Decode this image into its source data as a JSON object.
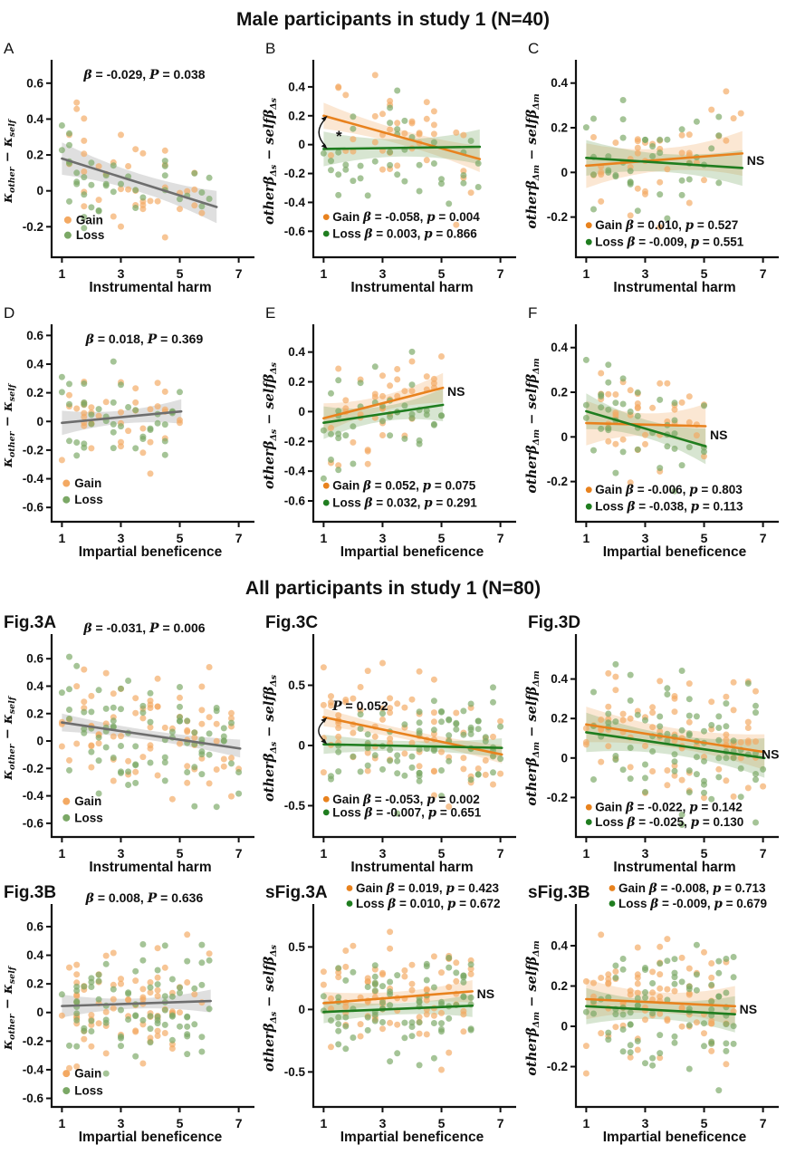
{
  "titles": {
    "section1": "Male participants in study 1 (N=40)",
    "section2": "All participants in study 1 (N=80)"
  },
  "legend_labels": {
    "gain": "Gain",
    "loss": "Loss"
  },
  "ns_label": "NS",
  "colors": {
    "gain_line": "#E8821E",
    "gain_dot": "#F3A963",
    "gain_band": "rgba(240,160,80,0.25)",
    "loss_line": "#1F7D1F",
    "loss_dot": "#7BA866",
    "loss_band": "rgba(123,168,102,0.30)",
    "fit_line": "#6E6E6E",
    "fit_band": "rgba(140,140,140,0.28)",
    "text": "#111111"
  },
  "ylabels": {
    "kappa": [
      {
        "t": "κ"
      },
      {
        "t": "other",
        "sub": 1
      },
      {
        "t": " − κ"
      },
      {
        "t": "self",
        "sub": 1
      }
    ],
    "ds": [
      {
        "t": "other"
      },
      {
        "t": "β"
      },
      {
        "t": "Δs",
        "sub": 1
      },
      {
        "t": " − self"
      },
      {
        "t": "β"
      },
      {
        "t": "Δs",
        "sub": 1
      }
    ],
    "dm": [
      {
        "t": "other"
      },
      {
        "t": "β"
      },
      {
        "t": "Δm",
        "sub": 1
      },
      {
        "t": " − self"
      },
      {
        "t": "β"
      },
      {
        "t": "Δm",
        "sub": 1
      }
    ]
  },
  "chart_data": {
    "type": "scatter",
    "x_axis_labels": [
      "Instrumental harm",
      "Impartial beneficence"
    ],
    "panels": [
      {
        "id": "A",
        "label": "A",
        "bold": false,
        "kind": "single",
        "section": 1,
        "ylabelKey": "kappa",
        "xlabel": "Instrumental harm",
        "xlim": [
          0.65,
          7.35
        ],
        "xticks": [
          1,
          3,
          5,
          7
        ],
        "ylim": [
          -0.37,
          0.7
        ],
        "yticks": [
          0.6,
          0.4,
          0.2,
          0,
          -0.2
        ],
        "fit": {
          "x1": 1,
          "y1": 0.18,
          "x2": 6.25,
          "y2": -0.09,
          "bw": [
            0.05,
            0.09
          ]
        },
        "stat": {
          "beta": "-0.029",
          "p_label": "P",
          "p": "0.038"
        },
        "scatter": {
          "xmin": 1,
          "xmax": 6.3,
          "n": 40,
          "noise": 0.17,
          "seedGain": 11,
          "seedLoss": 12
        },
        "legend": {
          "pos": "inside",
          "x": 1.2,
          "y1": -0.185,
          "y2": -0.27
        }
      },
      {
        "id": "B",
        "label": "B",
        "bold": false,
        "kind": "two",
        "section": 1,
        "ylabelKey": "ds",
        "xlabel": "Instrumental harm",
        "xlim": [
          0.65,
          7.35
        ],
        "xticks": [
          1,
          3,
          5,
          7
        ],
        "ylim": [
          -0.78,
          0.55
        ],
        "yticks": [
          0.4,
          0.2,
          0,
          -0.2,
          -0.4,
          -0.6
        ],
        "gain": {
          "x1": 1,
          "y1": 0.2,
          "x2": 6.3,
          "y2": -0.1,
          "beta": "-0.058",
          "p": "0.004",
          "bw": [
            0.05,
            0.09
          ]
        },
        "loss": {
          "x1": 1,
          "y1": -0.03,
          "x2": 6.3,
          "y2": -0.015,
          "beta": "0.003",
          "p": "0.866",
          "bw": [
            0.06,
            0.12
          ]
        },
        "scatter": {
          "xmin": 1,
          "xmax": 6.3,
          "n": 40,
          "noise": 0.18,
          "seedGain": 21,
          "seedLoss": 22
        },
        "legend": {
          "pos": "bottom",
          "x": 1.15,
          "y1": -0.53,
          "y2": -0.645
        },
        "arrow": {
          "x": 1.07,
          "yTop": 0.2,
          "yBot": -0.03,
          "label": "*",
          "lx": 1.42,
          "ly": 0.055
        }
      },
      {
        "id": "C",
        "label": "C",
        "bold": false,
        "kind": "two",
        "section": 1,
        "ylabelKey": "dm",
        "xlabel": "Instrumental harm",
        "xlim": [
          0.65,
          7.35
        ],
        "xticks": [
          1,
          3,
          5,
          7
        ],
        "ylim": [
          -0.38,
          0.48
        ],
        "yticks": [
          0.4,
          0.2,
          0,
          -0.2
        ],
        "gain": {
          "x1": 1,
          "y1": 0.03,
          "x2": 6.3,
          "y2": 0.085,
          "beta": "0.010",
          "p": "0.527",
          "bw": [
            0.05,
            0.1
          ]
        },
        "loss": {
          "x1": 1,
          "y1": 0.065,
          "x2": 6.3,
          "y2": 0.02,
          "beta": "-0.009",
          "p": "0.551",
          "bw": [
            0.04,
            0.08
          ]
        },
        "scatter": {
          "xmin": 1,
          "xmax": 6.3,
          "n": 40,
          "noise": 0.12,
          "seedGain": 31,
          "seedLoss": 32
        },
        "legend": {
          "pos": "bottom",
          "x": 1.15,
          "y1": -0.255,
          "y2": -0.33
        },
        "ns": {
          "x": 6.45,
          "y": 0.05
        }
      },
      {
        "id": "D",
        "label": "D",
        "bold": false,
        "kind": "single",
        "section": 1,
        "ylabelKey": "kappa",
        "xlabel": "Impartial beneficence",
        "xlim": [
          0.65,
          7.35
        ],
        "xticks": [
          1,
          3,
          5,
          7
        ],
        "ylim": [
          -0.7,
          0.64
        ],
        "yticks": [
          0.6,
          0.4,
          0.2,
          0,
          -0.2,
          -0.4,
          -0.6
        ],
        "fit": {
          "x1": 1,
          "y1": -0.01,
          "x2": 5.05,
          "y2": 0.07,
          "bw": [
            0.045,
            0.085
          ]
        },
        "stat": {
          "beta": "0.018",
          "p_label": "P",
          "p": "0.369"
        },
        "scatter": {
          "xmin": 1,
          "xmax": 5.1,
          "n": 40,
          "noise": 0.16,
          "seedGain": 41,
          "seedLoss": 42
        },
        "legend": {
          "pos": "inside",
          "x": 1.15,
          "y1": -0.46,
          "y2": -0.575
        }
      },
      {
        "id": "E",
        "label": "E",
        "bold": false,
        "kind": "two",
        "section": 1,
        "ylabelKey": "ds",
        "xlabel": "Impartial beneficence",
        "xlim": [
          0.65,
          7.35
        ],
        "xticks": [
          1,
          3,
          5,
          7
        ],
        "ylim": [
          -0.74,
          0.55
        ],
        "yticks": [
          0.4,
          0.2,
          0,
          -0.2,
          -0.4,
          -0.6
        ],
        "gain": {
          "x1": 1,
          "y1": -0.045,
          "x2": 5.05,
          "y2": 0.16,
          "beta": "0.052",
          "p": "0.075",
          "bw": [
            0.05,
            0.1
          ]
        },
        "loss": {
          "x1": 1,
          "y1": -0.075,
          "x2": 5.05,
          "y2": 0.045,
          "beta": "0.032",
          "p": "0.291",
          "bw": [
            0.05,
            0.11
          ]
        },
        "scatter": {
          "xmin": 1,
          "xmax": 5.1,
          "n": 40,
          "noise": 0.17,
          "seedGain": 51,
          "seedLoss": 52
        },
        "legend": {
          "pos": "bottom",
          "x": 1.15,
          "y1": -0.525,
          "y2": -0.64
        },
        "ns": {
          "x": 5.2,
          "y": 0.13
        }
      },
      {
        "id": "F",
        "label": "F",
        "bold": false,
        "kind": "two",
        "section": 1,
        "ylabelKey": "dm",
        "xlabel": "Impartial beneficence",
        "xlim": [
          0.65,
          7.35
        ],
        "xticks": [
          1,
          3,
          5,
          7
        ],
        "ylim": [
          -0.38,
          0.48
        ],
        "yticks": [
          0.4,
          0.2,
          0,
          -0.2
        ],
        "gain": {
          "x1": 1,
          "y1": 0.062,
          "x2": 5.05,
          "y2": 0.048,
          "beta": "-0.006",
          "p": "0.803",
          "bw": [
            0.05,
            0.1
          ]
        },
        "loss": {
          "x1": 1,
          "y1": 0.115,
          "x2": 5.05,
          "y2": -0.042,
          "beta": "-0.038",
          "p": "0.113",
          "bw": [
            0.04,
            0.08
          ]
        },
        "scatter": {
          "xmin": 1,
          "xmax": 5.1,
          "n": 40,
          "noise": 0.12,
          "seedGain": 61,
          "seedLoss": 62
        },
        "legend": {
          "pos": "bottom",
          "x": 1.15,
          "y1": -0.255,
          "y2": -0.33
        },
        "ns": {
          "x": 5.2,
          "y": 0.005
        }
      },
      {
        "id": "fig3A",
        "label": "Fig.3A",
        "bold": true,
        "kind": "single",
        "section": 2,
        "ylabelKey": "kappa",
        "xlabel": "Instrumental harm",
        "xlim": [
          0.65,
          7.35
        ],
        "xticks": [
          1,
          3,
          5,
          7
        ],
        "ylim": [
          -0.7,
          0.74
        ],
        "yticks": [
          0.6,
          0.4,
          0.2,
          0,
          -0.2,
          -0.4,
          -0.6
        ],
        "fit": {
          "x1": 1,
          "y1": 0.135,
          "x2": 7.05,
          "y2": -0.055,
          "bw": [
            0.035,
            0.065
          ]
        },
        "stat": {
          "beta": "-0.031",
          "p_label": "P",
          "p": "0.006"
        },
        "scatter": {
          "xmin": 1,
          "xmax": 7.05,
          "n": 80,
          "noise": 0.2,
          "seedGain": 71,
          "seedLoss": 72
        },
        "legend": {
          "pos": "inside",
          "x": 1.15,
          "y1": -0.47,
          "y2": -0.59
        }
      },
      {
        "id": "fig3C",
        "label": "Fig.3C",
        "bold": true,
        "kind": "two",
        "section": 2,
        "ylabelKey": "ds",
        "xlabel": "Instrumental harm",
        "xlim": [
          0.65,
          7.35
        ],
        "xticks": [
          1,
          3,
          5,
          7
        ],
        "ylim": [
          -0.76,
          0.88
        ],
        "yticks": [
          0.5,
          0,
          -0.5
        ],
        "gain": {
          "x1": 1,
          "y1": 0.235,
          "x2": 7.05,
          "y2": -0.075,
          "beta": "-0.053",
          "p": "0.002",
          "bw": [
            0.04,
            0.075
          ]
        },
        "loss": {
          "x1": 1,
          "y1": 0.01,
          "x2": 7.05,
          "y2": -0.02,
          "beta": "-0.007",
          "p": "0.651",
          "bw": [
            0.04,
            0.08
          ]
        },
        "scatter": {
          "xmin": 1,
          "xmax": 7.05,
          "n": 80,
          "noise": 0.22,
          "seedGain": 81,
          "seedLoss": 82
        },
        "legend": {
          "pos": "bottom",
          "x": 1.15,
          "y1": -0.48,
          "y2": -0.59
        },
        "arrow": {
          "x": 1.06,
          "yTop": 0.235,
          "yBot": 0.01,
          "label": "P = 0.052",
          "lx": 1.3,
          "ly": 0.33
        }
      },
      {
        "id": "fig3D",
        "label": "Fig.3D",
        "bold": true,
        "kind": "two",
        "section": 2,
        "ylabelKey": "dm",
        "xlabel": "Instrumental harm",
        "xlim": [
          0.65,
          7.35
        ],
        "xticks": [
          1,
          3,
          5,
          7
        ],
        "ylim": [
          -0.4,
          0.6
        ],
        "yticks": [
          0.4,
          0.2,
          0,
          -0.2
        ],
        "gain": {
          "x1": 1,
          "y1": 0.17,
          "x2": 7.05,
          "y2": 0.03,
          "beta": "-0.022",
          "p": "0.142",
          "bw": [
            0.05,
            0.09
          ]
        },
        "loss": {
          "x1": 1,
          "y1": 0.13,
          "x2": 7.05,
          "y2": 0.0,
          "beta": "-0.025",
          "p": "0.130",
          "bw": [
            0.05,
            0.1
          ]
        },
        "scatter": {
          "xmin": 1,
          "xmax": 7.05,
          "n": 80,
          "noise": 0.15,
          "seedGain": 91,
          "seedLoss": 92
        },
        "legend": {
          "pos": "bottom",
          "x": 1.15,
          "y1": -0.27,
          "y2": -0.345
        },
        "ns": {
          "x": 6.95,
          "y": 0.015
        }
      },
      {
        "id": "fig3B",
        "label": "Fig.3B",
        "bold": true,
        "kind": "single",
        "section": 2,
        "ylabelKey": "kappa",
        "xlabel": "Impartial beneficence",
        "xlim": [
          0.65,
          7.35
        ],
        "xticks": [
          1,
          3,
          5,
          7
        ],
        "ylim": [
          -0.66,
          0.72
        ],
        "yticks": [
          0.6,
          0.4,
          0.2,
          0,
          -0.2,
          -0.4,
          -0.6
        ],
        "fit": {
          "x1": 1,
          "y1": 0.045,
          "x2": 6.05,
          "y2": 0.08,
          "bw": [
            0.035,
            0.08
          ]
        },
        "stat": {
          "beta": "0.008",
          "p_label": "P",
          "p": "0.636"
        },
        "scatter": {
          "xmin": 1,
          "xmax": 6.05,
          "n": 80,
          "noise": 0.19,
          "seedGain": 101,
          "seedLoss": 102
        },
        "legend": {
          "pos": "inside",
          "x": 1.15,
          "y1": -0.455,
          "y2": -0.575
        }
      },
      {
        "id": "sfig3A",
        "label": "sFig.3A",
        "bold": true,
        "kind": "two",
        "section": 2,
        "ylabelKey": "ds",
        "xlabel": "Impartial beneficence",
        "xlim": [
          0.65,
          7.35
        ],
        "xticks": [
          1,
          3,
          5,
          7
        ],
        "ylim": [
          -0.78,
          0.8
        ],
        "yticks": [
          0.5,
          0,
          -0.5
        ],
        "gain": {
          "x1": 1,
          "y1": 0.05,
          "x2": 6.05,
          "y2": 0.145,
          "beta": "0.019",
          "p": "0.423",
          "bw": [
            0.045,
            0.09
          ]
        },
        "loss": {
          "x1": 1,
          "y1": -0.02,
          "x2": 6.05,
          "y2": 0.03,
          "beta": "0.010",
          "p": "0.672",
          "bw": [
            0.045,
            0.09
          ]
        },
        "scatter": {
          "xmin": 1,
          "xmax": 6.05,
          "n": 80,
          "noise": 0.21,
          "seedGain": 111,
          "seedLoss": 112
        },
        "legend": {
          "pos": "top"
        },
        "ns": {
          "x": 6.2,
          "y": 0.12
        }
      },
      {
        "id": "sfig3B",
        "label": "sFig.3B",
        "bold": true,
        "kind": "two",
        "section": 2,
        "ylabelKey": "dm",
        "xlabel": "Impartial beneficence",
        "xlim": [
          0.65,
          7.35
        ],
        "xticks": [
          1,
          3,
          5,
          7
        ],
        "ylim": [
          -0.4,
          0.58
        ],
        "yticks": [
          0.4,
          0.2,
          0,
          -0.2
        ],
        "gain": {
          "x1": 1,
          "y1": 0.135,
          "x2": 6.05,
          "y2": 0.1,
          "beta": "-0.008",
          "p": "0.713",
          "bw": [
            0.05,
            0.1
          ]
        },
        "loss": {
          "x1": 1,
          "y1": 0.1,
          "x2": 6.05,
          "y2": 0.06,
          "beta": "-0.009",
          "p": "0.679",
          "bw": [
            0.045,
            0.09
          ]
        },
        "scatter": {
          "xmin": 1,
          "xmax": 6.05,
          "n": 80,
          "noise": 0.15,
          "seedGain": 121,
          "seedLoss": 122
        },
        "legend": {
          "pos": "top"
        },
        "ns": {
          "x": 6.2,
          "y": 0.08
        }
      }
    ]
  }
}
